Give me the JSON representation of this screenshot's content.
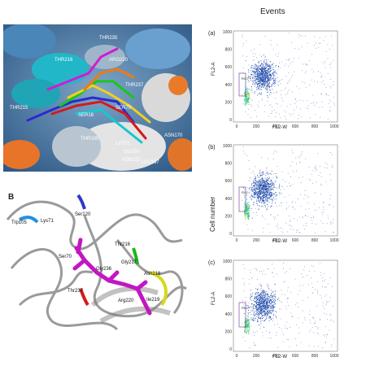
{
  "panel_a": {
    "residue_labels": [
      "THR235",
      "ARG220",
      "THR216",
      "THR237",
      "THR215",
      "SER18",
      "SER70",
      "THR105",
      "LYS71",
      "GLU10",
      "ASN132",
      "ASN170",
      "LEU167"
    ]
  },
  "panel_b": {
    "panel_letter": "B",
    "residue_labels": [
      "Trp105",
      "Lys71",
      "Ser120",
      "Ser70",
      "Thr216",
      "Gly236",
      "Gly217",
      "Thr237",
      "Asn218",
      "Arg220",
      "Ile219"
    ]
  },
  "flow": {
    "title": "Events",
    "cell_number_label": "Cell number",
    "plots": [
      {
        "letter": "(a)",
        "ylabel": "FL2-A",
        "xlabel": "FL2-W",
        "gate_label": "R0.0",
        "x_ticks": [
          "0",
          "200",
          "400",
          "600",
          "800",
          "1000"
        ],
        "y_ticks": [
          "1000",
          "800",
          "600",
          "400",
          "200",
          "0"
        ]
      },
      {
        "letter": "(b)",
        "ylabel": "",
        "xlabel": "FL2-W",
        "gate_label": "R0.0",
        "x_ticks": [
          "0",
          "200",
          "400",
          "600",
          "800",
          "1000"
        ],
        "y_ticks": [
          "1000",
          "800",
          "600",
          "400",
          "200",
          "0"
        ]
      },
      {
        "letter": "(c)",
        "ylabel": "FL2-A",
        "xlabel": "FL2-W",
        "gate_label": "R0.0",
        "x_ticks": [
          "0",
          "200",
          "400",
          "600",
          "800",
          "1000"
        ],
        "y_ticks": [
          "1000",
          "800",
          "600",
          "400",
          "200",
          "0"
        ]
      }
    ]
  }
}
